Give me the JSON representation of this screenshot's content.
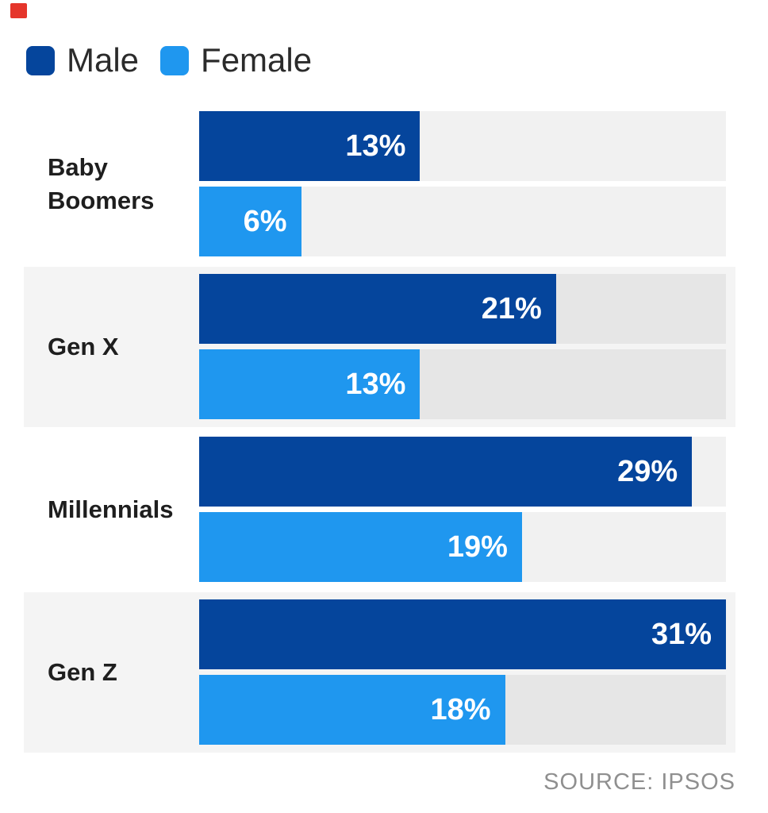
{
  "legend": {
    "items": [
      {
        "label": "Male",
        "color": "#05459c"
      },
      {
        "label": "Female",
        "color": "#1f97ef"
      }
    ]
  },
  "rows": [
    {
      "category": "Baby Boomers",
      "male_label": "13%",
      "female_label": "6%"
    },
    {
      "category": "Gen X",
      "male_label": "21%",
      "female_label": "13%"
    },
    {
      "category": "Millennials",
      "male_label": "29%",
      "female_label": "19%"
    },
    {
      "category": "Gen Z",
      "male_label": "31%",
      "female_label": "18%"
    }
  ],
  "source": {
    "label": "SOURCE: IPSOS"
  },
  "chart_data": {
    "type": "bar",
    "orientation": "horizontal",
    "categories": [
      "Baby Boomers",
      "Gen X",
      "Millennials",
      "Gen Z"
    ],
    "series": [
      {
        "name": "Male",
        "color": "#05459c",
        "values": [
          13,
          21,
          29,
          31
        ]
      },
      {
        "name": "Female",
        "color": "#1f97ef",
        "values": [
          6,
          13,
          19,
          18
        ]
      }
    ],
    "value_suffix": "%",
    "xlim": [
      0,
      31
    ],
    "value_labels": "inside-end",
    "legend_position": "top-left",
    "grid": false,
    "band_color": "#f4f4f4",
    "banded_row_indexes": [
      1,
      3
    ],
    "source": "SOURCE: IPSOS"
  },
  "colors": {
    "male": "#05459c",
    "female": "#1f97ef",
    "band": "#f4f4f4",
    "marker_red": "#e5352b",
    "category_text": "#1e1e1e",
    "legend_text": "#2b2b2b",
    "source_text": "#8f8f8f",
    "value_text": "#ffffff"
  }
}
